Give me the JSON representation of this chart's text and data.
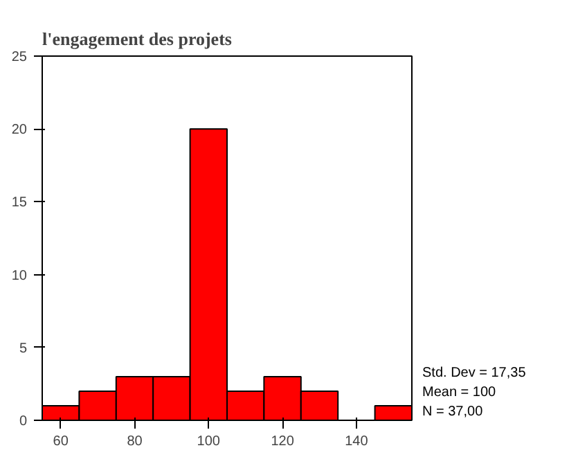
{
  "chart_data": {
    "type": "histogram",
    "title": "l'engagement des projets",
    "bins": [
      55,
      65,
      75,
      85,
      95,
      105,
      115,
      125,
      135,
      145,
      155
    ],
    "values": [
      1,
      2,
      3,
      3,
      20,
      2,
      3,
      2,
      0,
      1
    ],
    "color": "#ff0000",
    "xlim": [
      55,
      155
    ],
    "xticks": [
      60,
      80,
      100,
      120,
      140
    ],
    "ylim": [
      0,
      25
    ],
    "yticks": [
      0,
      5,
      10,
      15,
      20,
      25
    ],
    "grid": false,
    "annotations": [
      "Std. Dev = 17,35",
      "Mean = 100",
      "N = 37,00"
    ]
  }
}
